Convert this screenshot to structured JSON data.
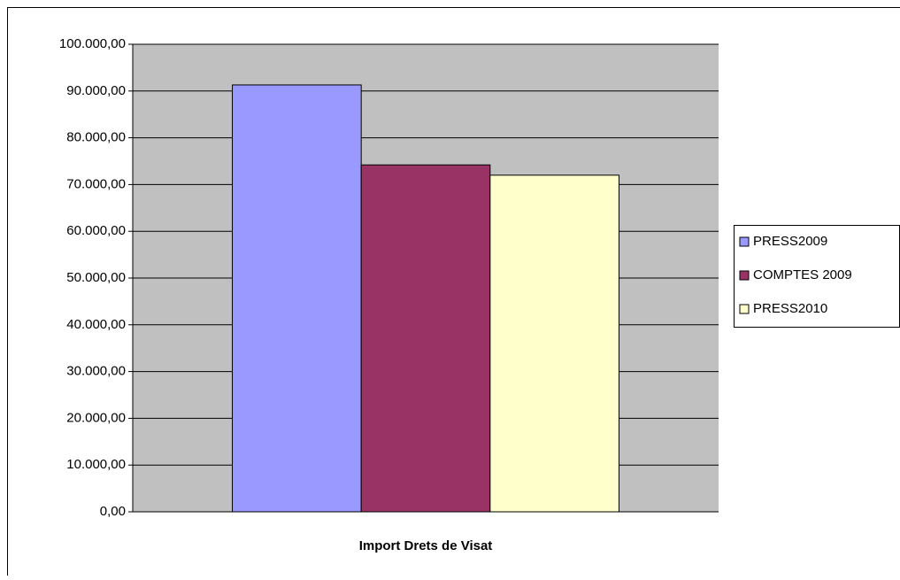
{
  "chart_data": {
    "type": "bar",
    "categories": [
      "Import Drets de Visat"
    ],
    "series": [
      {
        "name": "PRESS2009",
        "color": "#9999ff",
        "values": [
          91300
        ]
      },
      {
        "name": "COMPTES 2009",
        "color": "#993366",
        "values": [
          74200
        ]
      },
      {
        "name": "PRESS2010",
        "color": "#ffffcc",
        "values": [
          72000
        ]
      }
    ],
    "ylim": [
      0,
      100000
    ],
    "yticks": [
      {
        "value": 0,
        "label": "0,00"
      },
      {
        "value": 10000,
        "label": "10.000,00"
      },
      {
        "value": 20000,
        "label": "20.000,00"
      },
      {
        "value": 30000,
        "label": "30.000,00"
      },
      {
        "value": 40000,
        "label": "40.000,00"
      },
      {
        "value": 50000,
        "label": "50.000,00"
      },
      {
        "value": 60000,
        "label": "60.000,00"
      },
      {
        "value": 70000,
        "label": "70.000,00"
      },
      {
        "value": 80000,
        "label": "80.000,00"
      },
      {
        "value": 90000,
        "label": "90.000,00"
      },
      {
        "value": 100000,
        "label": "100.000,00"
      }
    ],
    "grid": true,
    "legend": "right",
    "plot_color": "#c0c0c0"
  }
}
